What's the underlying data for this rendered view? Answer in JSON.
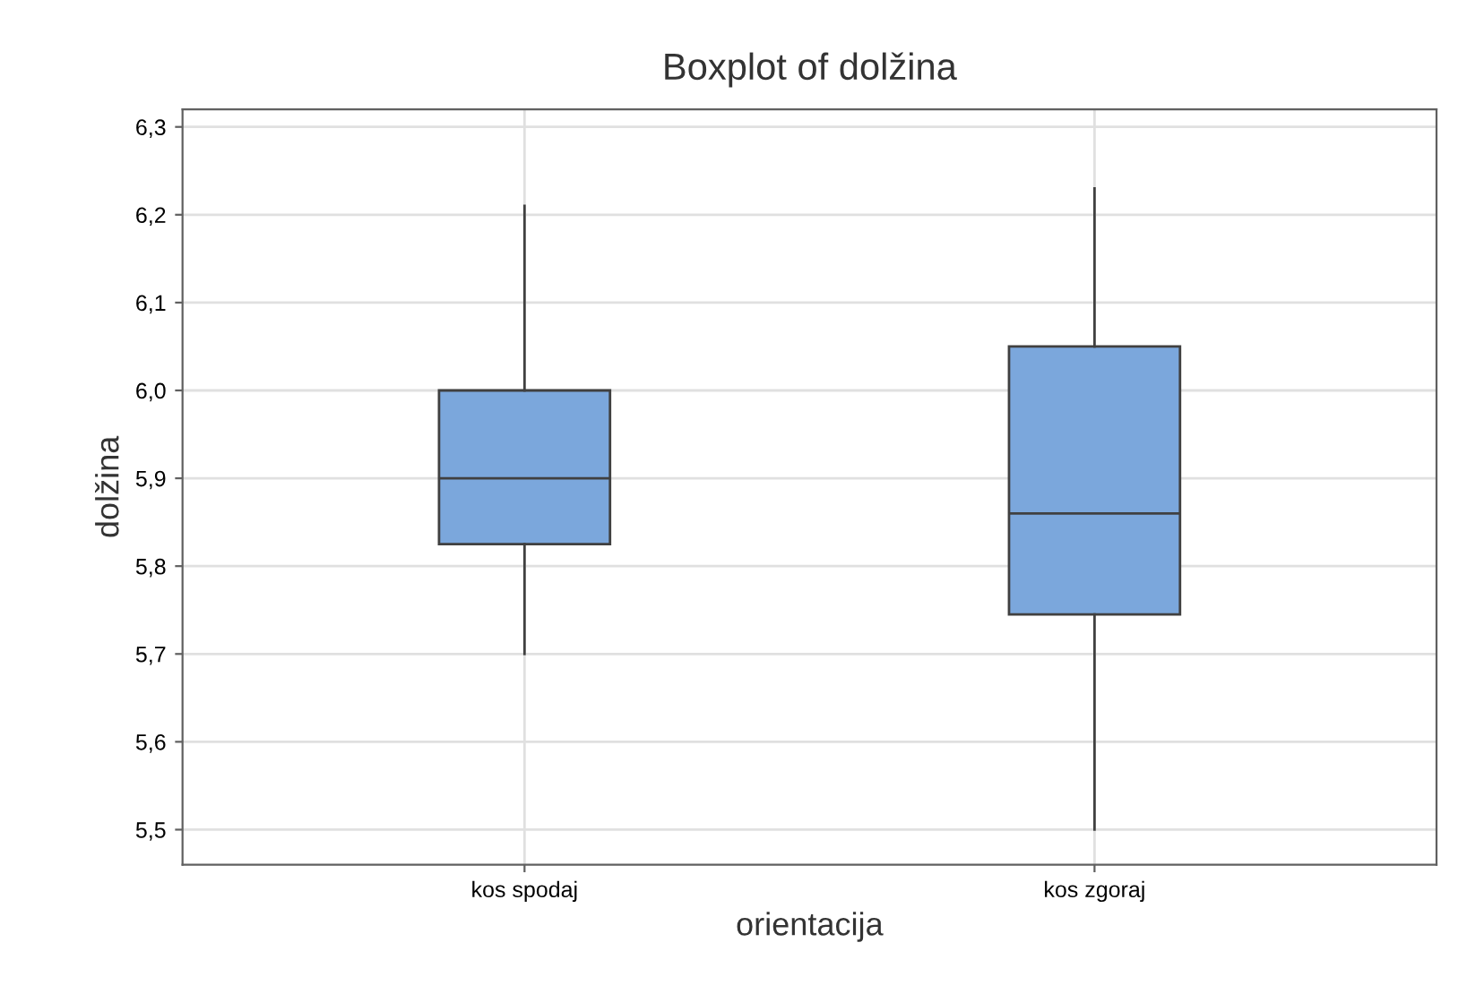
{
  "chart_data": {
    "type": "box",
    "title": "Boxplot of dolžina",
    "xlabel": "orientacija",
    "ylabel": "dolžina",
    "categories": [
      "kos spodaj",
      "kos zgoraj"
    ],
    "boxes": [
      {
        "low": 5.7,
        "q1": 5.825,
        "median": 5.9,
        "q3": 6.0,
        "high": 6.21
      },
      {
        "low": 5.5,
        "q1": 5.745,
        "median": 5.86,
        "q3": 6.05,
        "high": 6.23
      }
    ],
    "color": "#7ba7dc",
    "ylim": [
      5.46,
      6.32
    ],
    "yticks": [
      {
        "value": 5.5,
        "label": "5,5"
      },
      {
        "value": 5.6,
        "label": "5,6"
      },
      {
        "value": 5.7,
        "label": "5,7"
      },
      {
        "value": 5.8,
        "label": "5,8"
      },
      {
        "value": 5.9,
        "label": "5,9"
      },
      {
        "value": 6.0,
        "label": "6,0"
      },
      {
        "value": 6.1,
        "label": "6,1"
      },
      {
        "value": 6.2,
        "label": "6,2"
      },
      {
        "value": 6.3,
        "label": "6,3"
      }
    ],
    "grid": true
  }
}
